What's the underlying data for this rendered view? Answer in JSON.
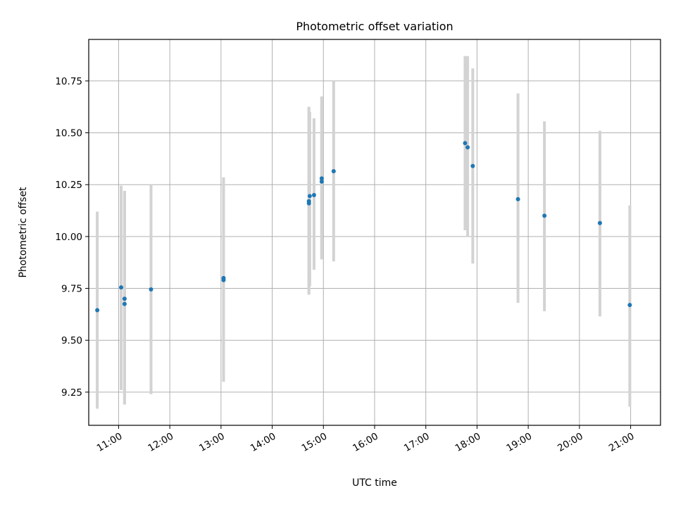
{
  "chart_data": {
    "type": "scatter",
    "title": "Photometric offset variation",
    "xlabel": "UTC time",
    "ylabel": "Photometric offset",
    "x_ticks": [
      "11:00",
      "12:00",
      "13:00",
      "14:00",
      "15:00",
      "16:00",
      "17:00",
      "18:00",
      "19:00",
      "20:00",
      "21:00"
    ],
    "y_ticks": [
      "9.25",
      "9.50",
      "9.75",
      "10.00",
      "10.25",
      "10.50",
      "10.75"
    ],
    "xlim": [
      "10:25",
      "21:35"
    ],
    "ylim": [
      9.09,
      10.95
    ],
    "grid": true,
    "point_color": "#1f77b4",
    "errorbar_color": "#d3d3d3",
    "points": [
      {
        "x": "10:35",
        "y": 9.645,
        "low": 9.17,
        "high": 10.12
      },
      {
        "x": "11:03",
        "y": 9.755,
        "low": 9.26,
        "high": 10.245
      },
      {
        "x": "11:07",
        "y": 9.7,
        "low": 9.19,
        "high": 10.22
      },
      {
        "x": "11:07",
        "y": 9.675,
        "low": 9.19,
        "high": 10.22
      },
      {
        "x": "11:38",
        "y": 9.745,
        "low": 9.24,
        "high": 10.25
      },
      {
        "x": "13:03",
        "y": 9.8,
        "low": 9.3,
        "high": 10.285
      },
      {
        "x": "13:03",
        "y": 9.79,
        "low": 9.3,
        "high": 10.285
      },
      {
        "x": "14:43",
        "y": 10.17,
        "low": 9.72,
        "high": 10.625
      },
      {
        "x": "14:43",
        "y": 10.16,
        "low": 9.72,
        "high": 10.625
      },
      {
        "x": "14:44",
        "y": 10.195,
        "low": 9.76,
        "high": 10.6
      },
      {
        "x": "14:49",
        "y": 10.2,
        "low": 9.84,
        "high": 10.57
      },
      {
        "x": "14:58",
        "y": 10.28,
        "low": 9.89,
        "high": 10.675
      },
      {
        "x": "14:58",
        "y": 10.265,
        "low": 9.89,
        "high": 10.675
      },
      {
        "x": "15:12",
        "y": 10.315,
        "low": 9.88,
        "high": 10.75
      },
      {
        "x": "17:46",
        "y": 10.45,
        "low": 10.03,
        "high": 10.87
      },
      {
        "x": "17:49",
        "y": 10.43,
        "low": 10.0,
        "high": 10.87
      },
      {
        "x": "17:55",
        "y": 10.34,
        "low": 9.87,
        "high": 10.81
      },
      {
        "x": "18:48",
        "y": 10.18,
        "low": 9.68,
        "high": 10.69
      },
      {
        "x": "19:19",
        "y": 10.1,
        "low": 9.64,
        "high": 10.555
      },
      {
        "x": "20:24",
        "y": 10.065,
        "low": 9.615,
        "high": 10.51
      },
      {
        "x": "20:59",
        "y": 9.67,
        "low": 9.18,
        "high": 10.15
      }
    ]
  }
}
